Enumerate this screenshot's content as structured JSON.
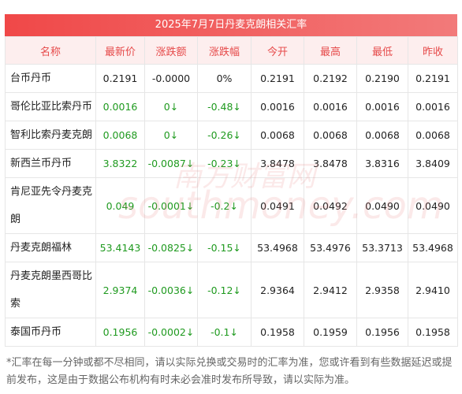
{
  "header": {
    "title": "2025年7月7日丹麦克朗相关汇率"
  },
  "table": {
    "columns": [
      "名称",
      "最新价",
      "涨跌额",
      "涨跌幅",
      "今开",
      "最高",
      "最低",
      "昨收"
    ],
    "rows": [
      {
        "cells": [
          "台币丹币",
          "0.2191",
          "-0.0000",
          "0%",
          "0.2191",
          "0.2192",
          "0.2190",
          "0.2191"
        ],
        "color": "#222222"
      },
      {
        "cells": [
          "哥伦比亚比索丹币",
          "0.0016",
          "0↓",
          "-0.48↓",
          "0.0016",
          "0.0016",
          "0.0016",
          "0.0016"
        ],
        "color": "#1f9a1f"
      },
      {
        "cells": [
          "智利比索丹麦克朗",
          "0.0068",
          "0↓",
          "-0.26↓",
          "0.0068",
          "0.0068",
          "0.0068",
          "0.0068"
        ],
        "color": "#1f9a1f"
      },
      {
        "cells": [
          "新西兰币丹币",
          "3.8322",
          "-0.0087↓",
          "-0.23↓",
          "3.8478",
          "3.8478",
          "3.8316",
          "3.8409"
        ],
        "color": "#1f9a1f"
      },
      {
        "cells": [
          "肯尼亚先令丹麦克朗",
          "0.049",
          "-0.0001↓",
          "-0.2↓",
          "0.0491",
          "0.0492",
          "0.0490",
          "0.0490"
        ],
        "color": "#1f9a1f"
      },
      {
        "cells": [
          "丹麦克朗福林",
          "53.4143",
          "-0.0825↓",
          "-0.15↓",
          "53.4968",
          "53.4976",
          "53.3713",
          "53.4968"
        ],
        "color": "#1f9a1f"
      },
      {
        "cells": [
          "丹麦克朗墨西哥比索",
          "2.9374",
          "-0.0036↓",
          "-0.12↓",
          "2.9364",
          "2.9412",
          "2.9358",
          "2.9410"
        ],
        "color": "#1f9a1f"
      },
      {
        "cells": [
          "泰国币丹币",
          "0.1956",
          "-0.0002↓",
          "-0.1↓",
          "0.1958",
          "0.1959",
          "0.1956",
          "0.1958"
        ],
        "color": "#1f9a1f"
      }
    ]
  },
  "watermark": {
    "logo": "南方财富网",
    "url": "southmoney.com"
  },
  "footnote": "*汇率在每一分钟或都不尽相同，请以实际兑换或交易时的汇率为准，您或许看到有些数据延迟或提前发布，这是由于数据公布机构有时未必会准时发布所导致，请以实际为准。"
}
